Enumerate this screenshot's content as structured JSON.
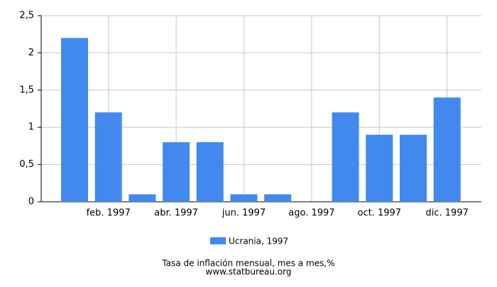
{
  "chart_data": {
    "type": "bar",
    "categories": [
      null,
      "feb. 1997",
      null,
      "abr. 1997",
      null,
      "jun. 1997",
      null,
      "ago. 1997",
      null,
      "oct. 1997",
      null,
      "dic. 1997"
    ],
    "series": [
      {
        "name": "Ucrania, 1997",
        "color": "#4189ee",
        "values": [
          2.2,
          1.2,
          0.1,
          0.8,
          0.8,
          0.1,
          0.1,
          0,
          1.2,
          0.9,
          0.9,
          1.4
        ]
      }
    ],
    "ylim": [
      0,
      2.5
    ],
    "yticks": [
      0,
      {
        "value": 0.5,
        "label": "0,5"
      },
      1,
      {
        "value": 1.5,
        "label": "1,5"
      },
      2,
      {
        "value": 2.5,
        "label": "2,5"
      }
    ],
    "grid": true,
    "legend": "bottom",
    "xlabel": "Tasa de inflación mensual, mes a mes,%",
    "source": "www.statbureau.org"
  }
}
